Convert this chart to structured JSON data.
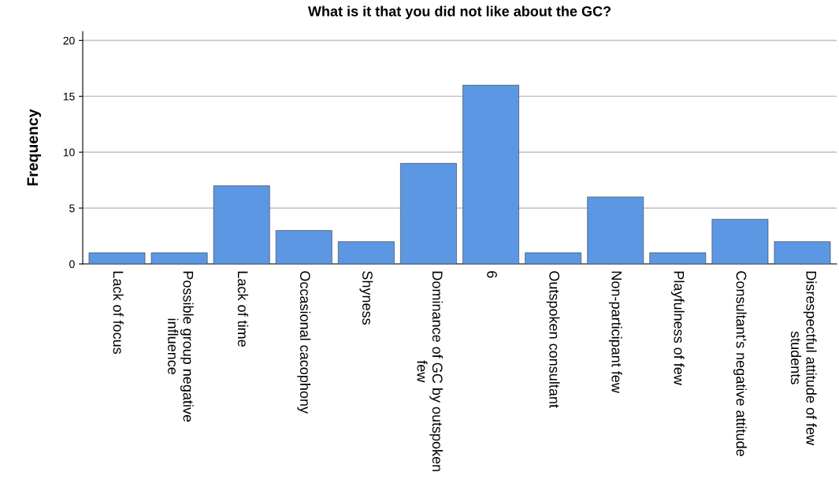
{
  "chart_data": {
    "type": "bar",
    "title": "What is it that you did not like about the GC?",
    "ylabel": "Frequency",
    "categories": [
      "Lack of focus",
      "Possible group negative\ninfluence",
      "Lack of time",
      "Occasional cacophony",
      "Shyness",
      "Dominance of GC by outspoken\nfew",
      "6",
      "Outspoken consultant",
      "Non-participant few",
      "Playfulness of few",
      "Consultant's negative attitude",
      "Disrespectful attitude of few\nstudents"
    ],
    "values": [
      1,
      1,
      7,
      3,
      2,
      9,
      16,
      1,
      6,
      1,
      4,
      2
    ],
    "color": "#5b97e3",
    "ylim": [
      0,
      20.8
    ],
    "yticks": [
      0,
      5,
      10,
      15,
      20
    ],
    "grid": "y"
  }
}
